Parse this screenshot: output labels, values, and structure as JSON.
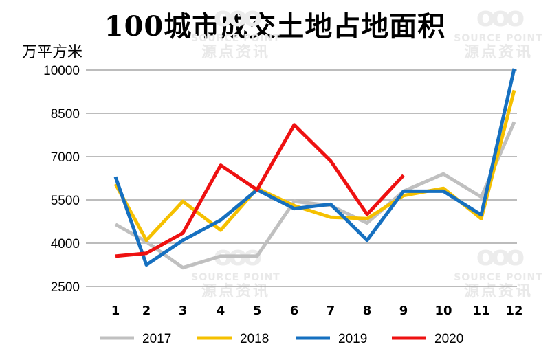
{
  "watermark": {
    "logo": "ooo",
    "en": "SOURCE POINT",
    "cn": "源点资讯"
  },
  "chart_data": {
    "type": "line",
    "title": "100城市成交土地占地面积",
    "ylabel": "万平方米",
    "categories": [
      "1",
      "2",
      "3",
      "4",
      "5",
      "6",
      "7",
      "8",
      "9",
      "10",
      "11",
      "12"
    ],
    "ylim": [
      2500,
      10000
    ],
    "yticks": [
      2500,
      4000,
      5500,
      7000,
      8500,
      10000
    ],
    "grid": true,
    "legend_position": "bottom",
    "series": [
      {
        "name": "2017",
        "color": "#c0c0c0",
        "values": [
          4650,
          4050,
          3150,
          3550,
          3550,
          5450,
          5300,
          4700,
          5800,
          6400,
          5600,
          8200
        ]
      },
      {
        "name": "2018",
        "color": "#f5c000",
        "values": [
          6050,
          4100,
          5450,
          4450,
          5900,
          5300,
          4900,
          4850,
          5650,
          5900,
          4850,
          9300
        ]
      },
      {
        "name": "2019",
        "color": "#1670c0",
        "values": [
          6300,
          3250,
          4100,
          4800,
          5850,
          5200,
          5350,
          4100,
          5800,
          5800,
          4980,
          10050
        ]
      },
      {
        "name": "2020",
        "color": "#ee1111",
        "values": [
          3550,
          3650,
          4350,
          6700,
          5850,
          8100,
          6850,
          5000,
          6350,
          null,
          null,
          null
        ]
      }
    ]
  }
}
